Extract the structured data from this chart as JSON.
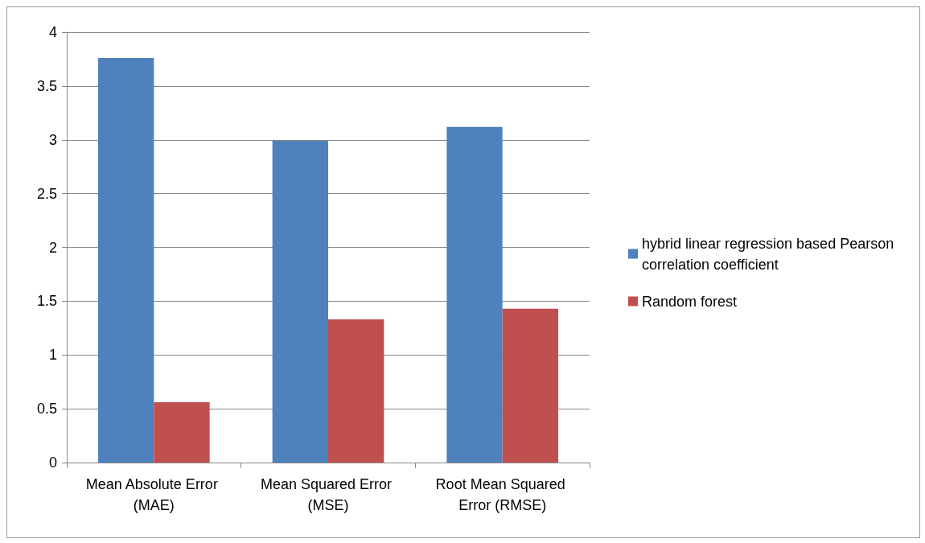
{
  "chart_data": {
    "type": "bar",
    "categories": [
      "Mean Absolute Error (MAE)",
      "Mean Squared Error (MSE)",
      "Root Mean Squared Error (RMSE)"
    ],
    "series": [
      {
        "name": "hybrid linear regression based Pearson correlation coefficient",
        "color": "#4f81bd",
        "values": [
          3.76,
          2.99,
          3.12
        ]
      },
      {
        "name": "Random forest",
        "color": "#c0504d",
        "values": [
          0.56,
          1.33,
          1.43
        ]
      }
    ],
    "ylim": [
      0,
      4
    ],
    "yticks": [
      0,
      0.5,
      1,
      1.5,
      2,
      2.5,
      3,
      3.5,
      4
    ],
    "grid": "y",
    "legend": "right"
  }
}
